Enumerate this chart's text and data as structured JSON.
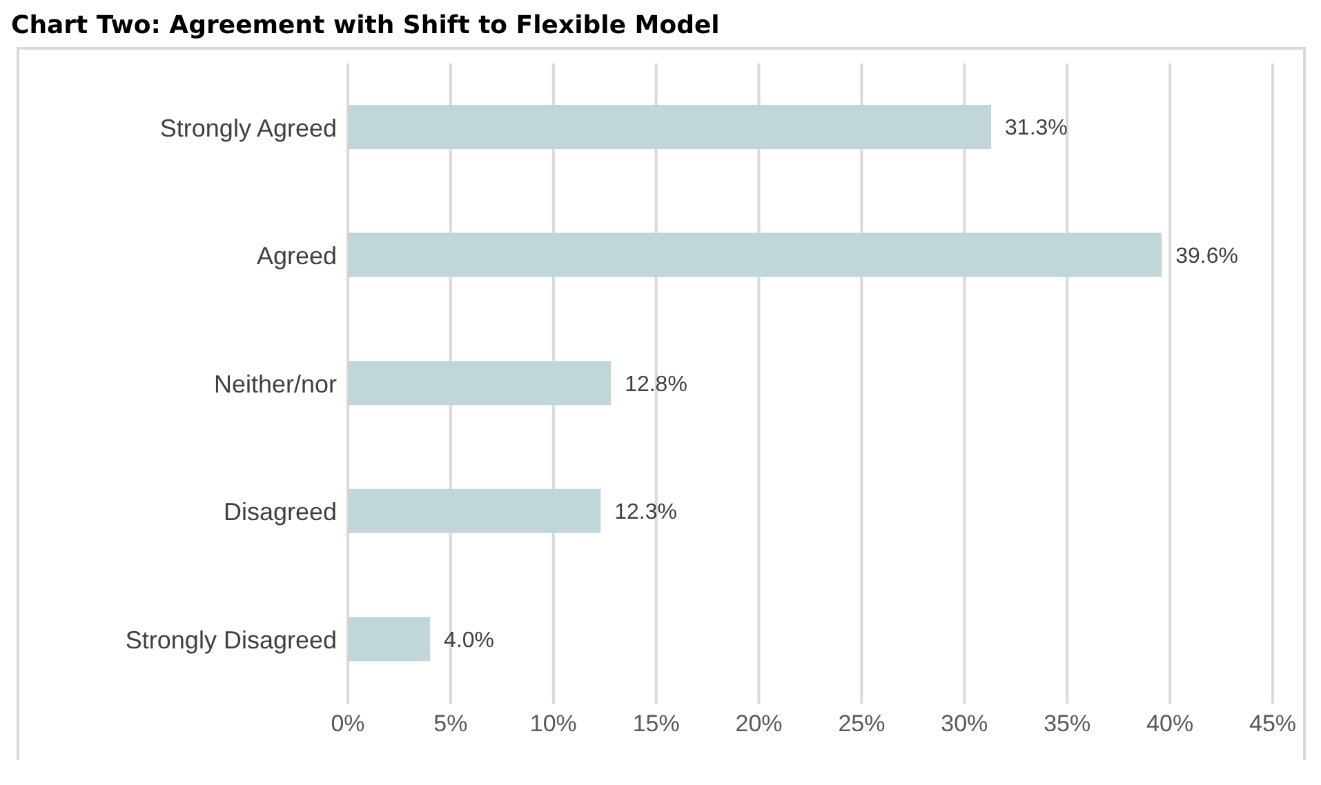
{
  "chart_data": {
    "type": "bar",
    "orientation": "horizontal",
    "title": "Chart Two: Agreement with Shift to Flexible Model",
    "categories": [
      "Strongly Agreed",
      "Agreed",
      "Neither/nor",
      "Disagreed",
      "Strongly Disagreed"
    ],
    "values": [
      31.3,
      39.6,
      12.8,
      12.3,
      4.0
    ],
    "value_labels": [
      "31.3%",
      "39.6%",
      "12.8%",
      "12.3%",
      "4.0%"
    ],
    "color": "#c0d6d9",
    "xlim": [
      0,
      45
    ],
    "xticks": [
      {
        "value": 0,
        "label": "0%"
      },
      {
        "value": 5,
        "label": "5%"
      },
      {
        "value": 10,
        "label": "10%"
      },
      {
        "value": 15,
        "label": "15%"
      },
      {
        "value": 20,
        "label": "20%"
      },
      {
        "value": 25,
        "label": "25%"
      },
      {
        "value": 30,
        "label": "30%"
      },
      {
        "value": 35,
        "label": "35%"
      },
      {
        "value": 40,
        "label": "40%"
      },
      {
        "value": 45,
        "label": "45%"
      }
    ],
    "grid": "x"
  }
}
